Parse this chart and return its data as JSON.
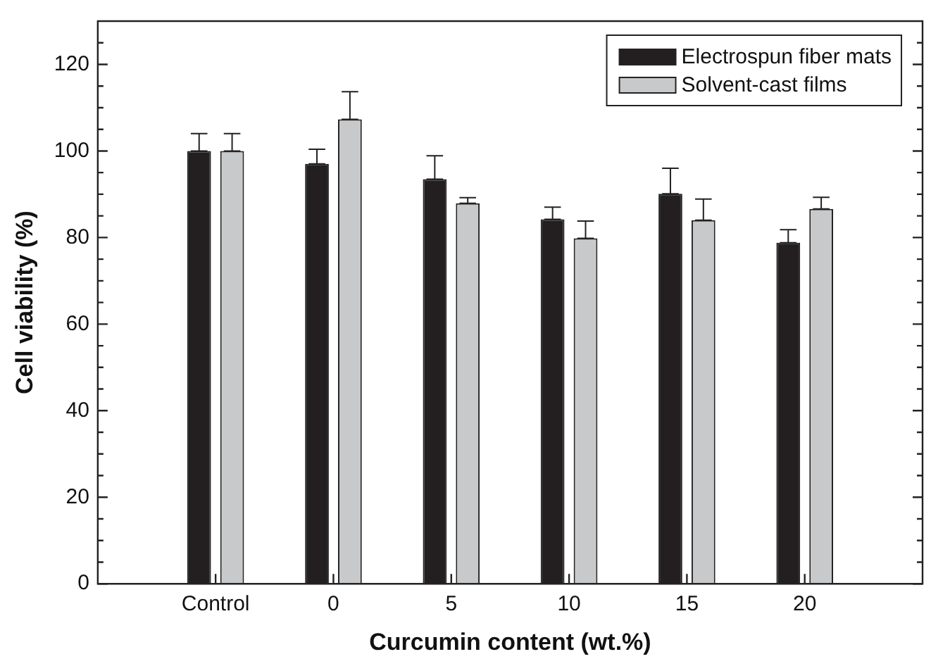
{
  "chart_data": {
    "type": "bar",
    "xlabel": "Curcumin content (wt.%)",
    "ylabel": "Cell viability (%)",
    "categories": [
      "Control",
      "0",
      "5",
      "10",
      "15",
      "20"
    ],
    "series": [
      {
        "name": "Electrospun fiber mats",
        "color": "#231f20",
        "values": [
          100,
          97,
          93.5,
          84.2,
          90.1,
          78.8
        ],
        "errors": [
          [
            100,
            104
          ],
          [
            97,
            100.4
          ],
          [
            93.5,
            98.9
          ],
          [
            84.2,
            87
          ],
          [
            90.1,
            96
          ],
          [
            78.8,
            81.8
          ]
        ]
      },
      {
        "name": "Solvent-cast films",
        "color": "#c8c9cb",
        "values": [
          100,
          107.3,
          87.9,
          79.8,
          84,
          86.6
        ],
        "errors": [
          [
            100,
            104
          ],
          [
            107.3,
            113.7
          ],
          [
            87.9,
            89.2
          ],
          [
            79.8,
            83.8
          ],
          [
            84,
            88.9
          ],
          [
            86.6,
            89.3
          ]
        ]
      }
    ],
    "ylim": [
      0,
      130
    ],
    "yticks": [
      0,
      {
        "value": 5,
        "label": null
      },
      {
        "value": 10,
        "label": null
      },
      {
        "value": 15,
        "label": null
      },
      20,
      {
        "value": 25,
        "label": null
      },
      {
        "value": 30,
        "label": null
      },
      {
        "value": 35,
        "label": null
      },
      40,
      {
        "value": 45,
        "label": null
      },
      {
        "value": 50,
        "label": null
      },
      {
        "value": 55,
        "label": null
      },
      60,
      {
        "value": 65,
        "label": null
      },
      {
        "value": 70,
        "label": null
      },
      {
        "value": 75,
        "label": null
      },
      80,
      {
        "value": 85,
        "label": null
      },
      {
        "value": 90,
        "label": null
      },
      {
        "value": 95,
        "label": null
      },
      100,
      {
        "value": 105,
        "label": null
      },
      {
        "value": 110,
        "label": null
      },
      {
        "value": 115,
        "label": null
      },
      120,
      {
        "value": 125,
        "label": null
      }
    ],
    "grid": false,
    "legend": "top right"
  }
}
